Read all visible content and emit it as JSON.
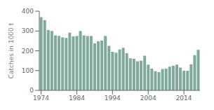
{
  "chart_data": {
    "type": "bar",
    "ylabel": "Catches in 1000 t",
    "x": [
      1974,
      1975,
      1976,
      1977,
      1978,
      1979,
      1980,
      1981,
      1982,
      1983,
      1984,
      1985,
      1986,
      1987,
      1988,
      1989,
      1990,
      1991,
      1992,
      1993,
      1994,
      1995,
      1996,
      1997,
      1998,
      1999,
      2000,
      2001,
      2002,
      2003,
      2004,
      2005,
      2006,
      2007,
      2008,
      2009,
      2010,
      2011,
      2012,
      2013,
      2014,
      2015,
      2016,
      2017,
      2018
    ],
    "values": [
      370,
      355,
      305,
      300,
      278,
      275,
      268,
      265,
      292,
      273,
      275,
      300,
      278,
      275,
      275,
      238,
      248,
      252,
      275,
      225,
      195,
      190,
      207,
      215,
      188,
      162,
      160,
      147,
      150,
      175,
      130,
      110,
      97,
      92,
      108,
      110,
      120,
      125,
      130,
      115,
      100,
      99,
      132,
      178,
      205
    ],
    "color": "#7faa98",
    "xlim": [
      1973.5,
      2018.5
    ],
    "xticks": [
      1974,
      1984,
      1994,
      2004,
      2014
    ],
    "ylim": [
      0,
      400
    ],
    "yticks": [
      0,
      100,
      200,
      300,
      400
    ]
  }
}
